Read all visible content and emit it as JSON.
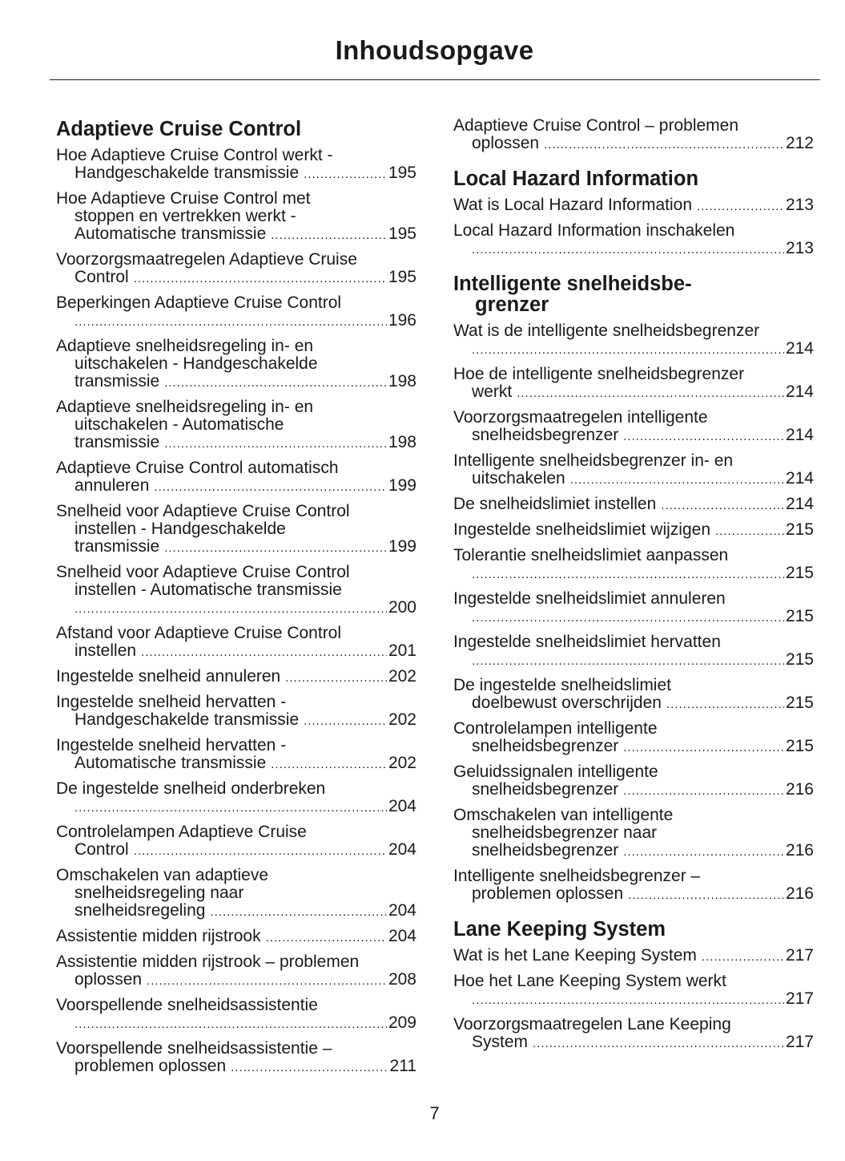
{
  "title": "Inhoudsopgave",
  "page_number": "7",
  "columns": [
    {
      "sections": [
        {
          "heading": [
            "Adaptieve Cruise Control"
          ],
          "entries": [
            {
              "lines": [
                "Hoe Adaptieve Cruise Control werkt -",
                "Handgeschakelde transmissie"
              ],
              "page": "195"
            },
            {
              "lines": [
                "Hoe Adaptieve Cruise Control met",
                "stoppen en vertrekken werkt -",
                "Automatische transmissie"
              ],
              "page": "195"
            },
            {
              "lines": [
                "Voorzorgsmaatregelen Adaptieve Cruise",
                "Control"
              ],
              "page": "195"
            },
            {
              "lines": [
                "Beperkingen Adaptieve Cruise Control",
                ""
              ],
              "page": "196"
            },
            {
              "lines": [
                "Adaptieve snelheidsregeling in- en",
                "uitschakelen - Handgeschakelde",
                "transmissie"
              ],
              "page": "198"
            },
            {
              "lines": [
                "Adaptieve snelheidsregeling in- en",
                "uitschakelen - Automatische",
                "transmissie"
              ],
              "page": "198"
            },
            {
              "lines": [
                "Adaptieve Cruise Control automatisch",
                "annuleren"
              ],
              "page": "199"
            },
            {
              "lines": [
                "Snelheid voor Adaptieve Cruise Control",
                "instellen - Handgeschakelde",
                "transmissie"
              ],
              "page": "199"
            },
            {
              "lines": [
                "Snelheid voor Adaptieve Cruise Control",
                "instellen - Automatische transmissie",
                ""
              ],
              "page": "200"
            },
            {
              "lines": [
                "Afstand voor Adaptieve Cruise Control",
                "instellen"
              ],
              "page": "201"
            },
            {
              "lines": [
                "Ingestelde snelheid annuleren"
              ],
              "page": "202"
            },
            {
              "lines": [
                "Ingestelde snelheid hervatten -",
                "Handgeschakelde transmissie"
              ],
              "page": "202"
            },
            {
              "lines": [
                "Ingestelde snelheid hervatten -",
                "Automatische transmissie"
              ],
              "page": "202"
            },
            {
              "lines": [
                "De ingestelde snelheid onderbreken",
                ""
              ],
              "page": "204"
            },
            {
              "lines": [
                "Controlelampen Adaptieve Cruise",
                "Control"
              ],
              "page": "204"
            },
            {
              "lines": [
                "Omschakelen van adaptieve",
                "snelheidsregeling naar",
                "snelheidsregeling"
              ],
              "page": "204"
            },
            {
              "lines": [
                "Assistentie midden rijstrook"
              ],
              "page": "204"
            },
            {
              "lines": [
                "Assistentie midden rijstrook – problemen",
                "oplossen"
              ],
              "page": "208"
            },
            {
              "lines": [
                "Voorspellende snelheidsassistentie",
                ""
              ],
              "page": "209"
            },
            {
              "lines": [
                "Voorspellende snelheidsassistentie –",
                "problemen oplossen"
              ],
              "page": "211"
            }
          ]
        }
      ]
    },
    {
      "sections": [
        {
          "heading": [],
          "entries": [
            {
              "lines": [
                "Adaptieve Cruise Control – problemen",
                "oplossen"
              ],
              "page": "212"
            }
          ]
        },
        {
          "heading": [
            "Local Hazard Information"
          ],
          "entries": [
            {
              "lines": [
                "Wat is Local Hazard Information"
              ],
              "page": "213"
            },
            {
              "lines": [
                "Local Hazard Information inschakelen",
                ""
              ],
              "page": "213"
            }
          ]
        },
        {
          "heading": [
            "Intelligente snelheidsbe-",
            "grenzer"
          ],
          "entries": [
            {
              "lines": [
                "Wat is de intelligente snelheidsbegrenzer",
                ""
              ],
              "page": "214"
            },
            {
              "lines": [
                "Hoe de intelligente snelheidsbegrenzer",
                "werkt"
              ],
              "page": "214"
            },
            {
              "lines": [
                "Voorzorgsmaatregelen intelligente",
                "snelheidsbegrenzer"
              ],
              "page": "214"
            },
            {
              "lines": [
                "Intelligente snelheidsbegrenzer in- en",
                "uitschakelen"
              ],
              "page": "214"
            },
            {
              "lines": [
                "De snelheidslimiet instellen"
              ],
              "page": "214"
            },
            {
              "lines": [
                "Ingestelde snelheidslimiet wijzigen"
              ],
              "page": "215"
            },
            {
              "lines": [
                "Tolerantie snelheidslimiet aanpassen",
                ""
              ],
              "page": "215"
            },
            {
              "lines": [
                "Ingestelde snelheidslimiet annuleren",
                ""
              ],
              "page": "215"
            },
            {
              "lines": [
                "Ingestelde snelheidslimiet hervatten",
                ""
              ],
              "page": "215"
            },
            {
              "lines": [
                "De ingestelde snelheidslimiet",
                "doelbewust overschrijden"
              ],
              "page": "215"
            },
            {
              "lines": [
                "Controlelampen intelligente",
                "snelheidsbegrenzer"
              ],
              "page": "215"
            },
            {
              "lines": [
                "Geluidssignalen intelligente",
                "snelheidsbegrenzer"
              ],
              "page": "216"
            },
            {
              "lines": [
                "Omschakelen van intelligente",
                "snelheidsbegrenzer naar",
                "snelheidsbegrenzer"
              ],
              "page": "216"
            },
            {
              "lines": [
                "Intelligente snelheidsbegrenzer –",
                "problemen oplossen"
              ],
              "page": "216"
            }
          ]
        },
        {
          "heading": [
            "Lane Keeping System"
          ],
          "entries": [
            {
              "lines": [
                "Wat is het Lane Keeping System"
              ],
              "page": "217"
            },
            {
              "lines": [
                "Hoe het Lane Keeping System werkt",
                ""
              ],
              "page": "217"
            },
            {
              "lines": [
                "Voorzorgsmaatregelen Lane Keeping",
                "System"
              ],
              "page": "217"
            }
          ]
        }
      ]
    }
  ]
}
